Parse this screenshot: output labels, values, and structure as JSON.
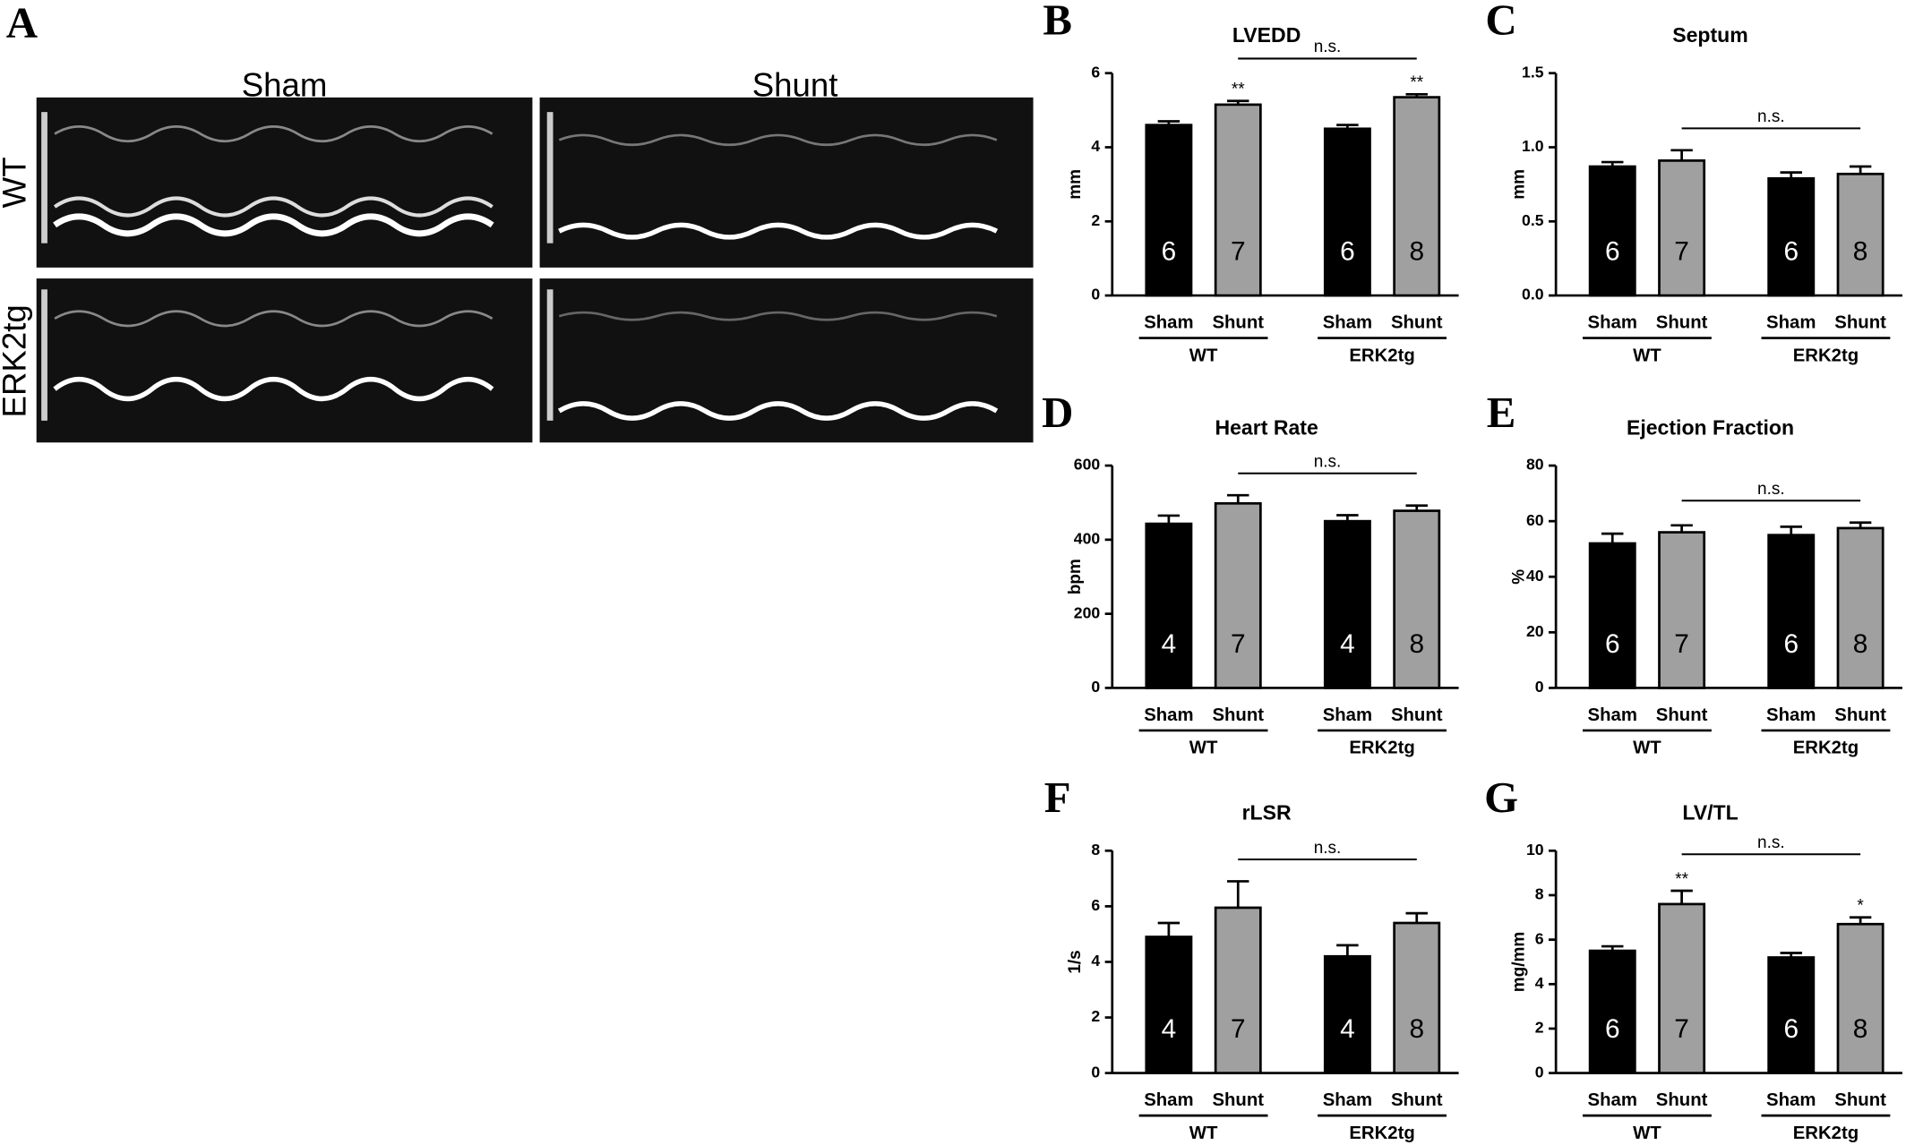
{
  "panel_a": {
    "letter": "A",
    "columns": [
      "Sham",
      "Shunt"
    ],
    "rows": [
      "WT",
      "ERK2tg"
    ]
  },
  "chart_data": [
    {
      "type": "bar",
      "panel": "B",
      "title": "LVEDD",
      "ylabel": "mm",
      "categories": [
        "Sham",
        "Shunt",
        "Sham",
        "Shunt"
      ],
      "groups": [
        "WT",
        "ERK2tg"
      ],
      "values": [
        4.6,
        5.15,
        4.5,
        5.35
      ],
      "errors": [
        0.1,
        0.1,
        0.1,
        0.08
      ],
      "n": [
        6,
        7,
        6,
        8
      ],
      "significance": [
        null,
        "**",
        null,
        "**"
      ],
      "annotation": "n.s.",
      "colors": [
        "#000000",
        "#a0a0a0",
        "#000000",
        "#a0a0a0"
      ],
      "ylim": [
        0,
        6
      ],
      "yticks": [
        0,
        2,
        4,
        6
      ]
    },
    {
      "type": "bar",
      "panel": "C",
      "title": "Septum",
      "ylabel": "mm",
      "categories": [
        "Sham",
        "Shunt",
        "Sham",
        "Shunt"
      ],
      "groups": [
        "WT",
        "ERK2tg"
      ],
      "values": [
        0.87,
        0.91,
        0.79,
        0.82
      ],
      "errors": [
        0.03,
        0.07,
        0.04,
        0.05
      ],
      "n": [
        6,
        7,
        6,
        8
      ],
      "significance": [
        null,
        null,
        null,
        null
      ],
      "annotation": "n.s.",
      "colors": [
        "#000000",
        "#a0a0a0",
        "#000000",
        "#a0a0a0"
      ],
      "ylim": [
        0,
        1.5
      ],
      "yticks": [
        {
          "value": 0,
          "label": "0.0"
        },
        0.5,
        {
          "value": 1,
          "label": "1.0"
        },
        1.5
      ]
    },
    {
      "type": "bar",
      "panel": "D",
      "title": "Heart Rate",
      "ylabel": "bpm",
      "categories": [
        "Sham",
        "Shunt",
        "Sham",
        "Shunt"
      ],
      "groups": [
        "WT",
        "ERK2tg"
      ],
      "values": [
        443,
        498,
        450,
        478
      ],
      "errors": [
        22,
        22,
        16,
        14
      ],
      "n": [
        4,
        7,
        4,
        8
      ],
      "significance": [
        null,
        null,
        null,
        null
      ],
      "annotation": "n.s.",
      "colors": [
        "#000000",
        "#a0a0a0",
        "#000000",
        "#a0a0a0"
      ],
      "ylim": [
        0,
        600
      ],
      "yticks": [
        0,
        200,
        400,
        600
      ]
    },
    {
      "type": "bar",
      "panel": "E",
      "title": "Ejection Fraction",
      "ylabel": "%",
      "categories": [
        "Sham",
        "Shunt",
        "Sham",
        "Shunt"
      ],
      "groups": [
        "WT",
        "ERK2tg"
      ],
      "values": [
        52,
        56,
        55,
        57.5
      ],
      "errors": [
        3.5,
        2.5,
        3,
        2
      ],
      "n": [
        6,
        7,
        6,
        8
      ],
      "significance": [
        null,
        null,
        null,
        null
      ],
      "annotation": "n.s.",
      "colors": [
        "#000000",
        "#a0a0a0",
        "#000000",
        "#a0a0a0"
      ],
      "ylim": [
        0,
        80
      ],
      "yticks": [
        0,
        20,
        40,
        60,
        80
      ]
    },
    {
      "type": "bar",
      "panel": "F",
      "title": "rLSR",
      "ylabel": "1/s",
      "categories": [
        "Sham",
        "Shunt",
        "Sham",
        "Shunt"
      ],
      "groups": [
        "WT",
        "ERK2tg"
      ],
      "values": [
        4.9,
        5.95,
        4.2,
        5.4
      ],
      "errors": [
        0.5,
        0.95,
        0.4,
        0.35
      ],
      "n": [
        4,
        7,
        4,
        8
      ],
      "significance": [
        null,
        null,
        null,
        null
      ],
      "annotation": "n.s.",
      "colors": [
        "#000000",
        "#a0a0a0",
        "#000000",
        "#a0a0a0"
      ],
      "ylim": [
        0,
        8
      ],
      "yticks": [
        0,
        2,
        4,
        6,
        8
      ]
    },
    {
      "type": "bar",
      "panel": "G",
      "title": "LV/TL",
      "ylabel": "mg/mm",
      "categories": [
        "Sham",
        "Shunt",
        "Sham",
        "Shunt"
      ],
      "groups": [
        "WT",
        "ERK2tg"
      ],
      "values": [
        5.5,
        7.6,
        5.2,
        6.7
      ],
      "errors": [
        0.2,
        0.6,
        0.2,
        0.3
      ],
      "n": [
        6,
        7,
        6,
        8
      ],
      "significance": [
        null,
        "**",
        null,
        "*"
      ],
      "annotation": "n.s.",
      "colors": [
        "#000000",
        "#a0a0a0",
        "#000000",
        "#a0a0a0"
      ],
      "ylim": [
        0,
        10
      ],
      "yticks": [
        0,
        2,
        4,
        6,
        8,
        10
      ]
    }
  ]
}
